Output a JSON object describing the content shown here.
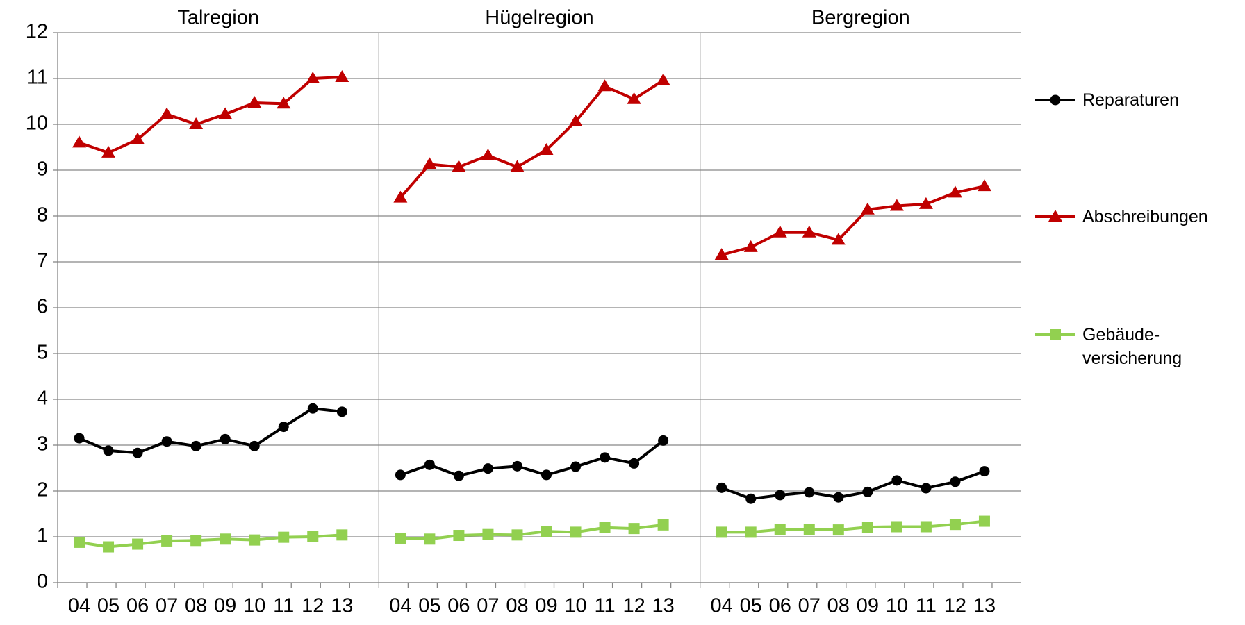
{
  "chart_data": {
    "type": "line",
    "ylim": [
      0,
      12
    ],
    "yticks": [
      0,
      1,
      2,
      3,
      4,
      5,
      6,
      7,
      8,
      9,
      10,
      11,
      12
    ],
    "grid": true,
    "panels": [
      {
        "title": "Talregion",
        "categories": [
          "04",
          "05",
          "06",
          "07",
          "08",
          "09",
          "10",
          "11",
          "12",
          "13"
        ]
      },
      {
        "title": "Hügelregion",
        "categories": [
          "04",
          "05",
          "06",
          "07",
          "08",
          "09",
          "10",
          "11",
          "12",
          "13"
        ]
      },
      {
        "title": "Bergregion",
        "categories": [
          "04",
          "05",
          "06",
          "07",
          "08",
          "09",
          "10",
          "11",
          "12",
          "13"
        ]
      }
    ],
    "series": [
      {
        "name": "Reparaturen",
        "color": "#000000",
        "marker": "circle",
        "values": [
          [
            3.15,
            2.88,
            2.83,
            3.08,
            2.98,
            3.13,
            2.98,
            3.4,
            3.8,
            3.73
          ],
          [
            2.35,
            2.57,
            2.33,
            2.49,
            2.54,
            2.35,
            2.53,
            2.73,
            2.6,
            3.1
          ],
          [
            2.07,
            1.83,
            1.91,
            1.97,
            1.86,
            1.98,
            2.23,
            2.06,
            2.2,
            2.43
          ]
        ]
      },
      {
        "name": "Abschreibungen",
        "color": "#c00000",
        "marker": "triangle",
        "values": [
          [
            9.6,
            9.38,
            9.67,
            10.22,
            10.0,
            10.22,
            10.47,
            10.45,
            11.0,
            11.03
          ],
          [
            8.4,
            9.13,
            9.07,
            9.32,
            9.07,
            9.44,
            10.06,
            10.83,
            10.55,
            10.96
          ],
          [
            7.15,
            7.32,
            7.64,
            7.64,
            7.48,
            8.14,
            8.22,
            8.26,
            8.51,
            8.65
          ]
        ]
      },
      {
        "name": "Gebäude-\nversicherung",
        "color": "#92d050",
        "marker": "square",
        "values": [
          [
            0.88,
            0.78,
            0.84,
            0.91,
            0.92,
            0.95,
            0.93,
            0.99,
            1.0,
            1.04
          ],
          [
            0.97,
            0.95,
            1.03,
            1.05,
            1.04,
            1.12,
            1.1,
            1.2,
            1.18,
            1.26
          ],
          [
            1.1,
            1.1,
            1.16,
            1.16,
            1.15,
            1.21,
            1.22,
            1.22,
            1.27,
            1.34
          ]
        ]
      }
    ]
  }
}
